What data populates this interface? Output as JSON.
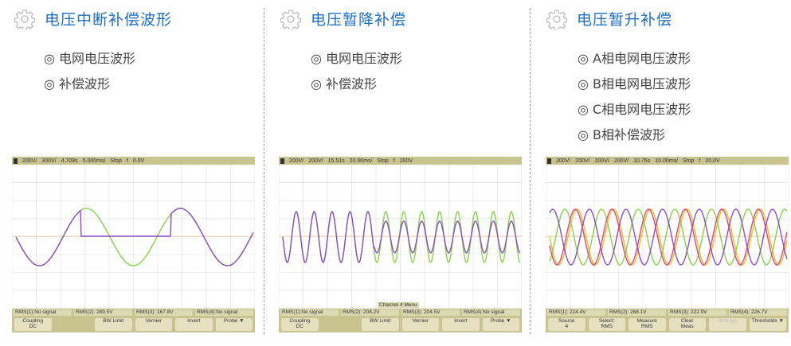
{
  "panels": [
    {
      "title": "电压中断补偿波形",
      "legend": [
        "◎ 电网电压波形",
        "◎ 补偿波形"
      ],
      "scope": {
        "top": [
          "200V/",
          "300V/",
          "4.709s",
          "5.000ms/",
          "Stop",
          "f",
          "0.0V"
        ],
        "rms": [
          "RMS(1):No signal",
          "RMS(2): 289.5V",
          "RMS(3): 167.8V",
          "RMS(4):No signal"
        ],
        "buttons": [
          "Coupling\nDC",
          "",
          "BW Limit",
          "Vernier",
          "Invert",
          "Probe ▼"
        ],
        "menu": ""
      }
    },
    {
      "title": "电压暂降补偿",
      "legend": [
        "◎ 电网电压波形",
        "◎ 补偿波形"
      ],
      "scope": {
        "top": [
          "200V/",
          "200V/",
          "15.51s",
          "20.00ms/",
          "Stop",
          "f",
          "200V"
        ],
        "rms": [
          "RMS(1):No signal",
          "RMS(2): 208.2V",
          "RMS(3): 204.5V",
          "RMS(4):No signal"
        ],
        "buttons": [
          "Coupling\nDC",
          "",
          "BW Limit",
          "Vernier",
          "Invert",
          "Probe ▼"
        ],
        "menu": "Channel 4 Menu"
      }
    },
    {
      "title": "电压暂升补偿",
      "legend": [
        "◎ A相电网电压波形",
        "◎ B相电网电压波形",
        "◎ C相电网电压波形",
        "◎ B相补偿波形"
      ],
      "scope": {
        "top": [
          "200V/",
          "200V/",
          "200V/",
          "200V/",
          "10.76s",
          "10.00ms/",
          "Stop",
          "f",
          "20.0V"
        ],
        "rms": [
          "RMS(1): 224.4V",
          "RMS(2): 268.1V",
          "RMS(3): 222.9V",
          "RMS(4): 226.7V"
        ],
        "buttons": [
          "Source\n4",
          "Select:\nRMS",
          "Measure\nRMS",
          "Clear\nMeas",
          "Settings",
          "Thresholds ▼"
        ],
        "menu": ""
      }
    }
  ],
  "colors": {
    "title": "#1f6fc0",
    "ch1": "#e5c21a",
    "ch2": "#8ad04a",
    "ch3": "#8a4fc0",
    "ch4": "#d8458f"
  }
}
